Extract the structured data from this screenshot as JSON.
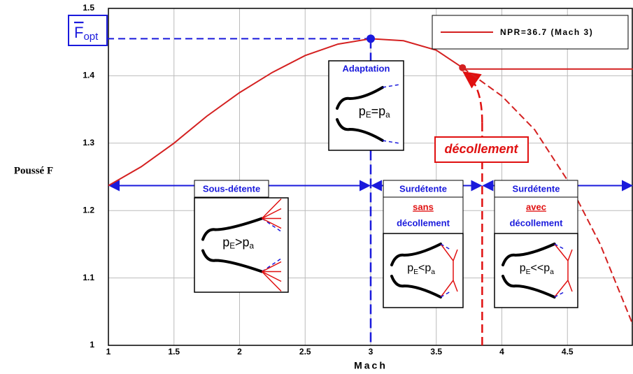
{
  "chart_data": {
    "type": "line",
    "xlabel": "Mach",
    "ylabel": "Poussé F",
    "xlim": [
      1,
      5
    ],
    "ylim": [
      1,
      1.5
    ],
    "xticks": [
      1,
      1.5,
      2,
      2.5,
      3,
      3.5,
      4,
      4.5
    ],
    "yticks": [
      1,
      1.1,
      1.2,
      1.3,
      1.4,
      1.5
    ],
    "grid": true,
    "legend": "upper right",
    "series": [
      {
        "name": "NPR=36.7 (Mach 3)",
        "color": "#d42020",
        "x": [
          1,
          1.25,
          1.5,
          1.75,
          2,
          2.25,
          2.5,
          2.75,
          3,
          3.25,
          3.5,
          3.7
        ],
        "values": [
          1.237,
          1.265,
          1.3,
          1.34,
          1.375,
          1.405,
          1.43,
          1.447,
          1.455,
          1.452,
          1.438,
          1.412
        ]
      },
      {
        "color": "#d42020",
        "dashed": true,
        "x": [
          3.7,
          4,
          4.25,
          4.5,
          4.75,
          5
        ],
        "values": [
          1.412,
          1.37,
          1.32,
          1.245,
          1.15,
          1.03
        ]
      },
      {
        "color": "#d42020",
        "x": [
          3.7,
          5
        ],
        "values": [
          1.41,
          1.41
        ]
      }
    ],
    "optimum": {
      "label": "F",
      "sub": "opt",
      "x": 3,
      "value": 1.455,
      "color": "#1a1adc"
    },
    "separation": {
      "x": 3.85,
      "label": "décollement",
      "color": "#e01010"
    },
    "regime_line": 1.237,
    "regimes": [
      {
        "label": "Sous-détente",
        "from": 1,
        "to": 3,
        "formula": [
          "p",
          "E",
          ">p",
          "a"
        ]
      },
      {
        "label": "Adaptation",
        "formula": [
          "p",
          "E",
          "=p",
          "a"
        ]
      },
      {
        "label": "Surdétente",
        "from": 3,
        "to": 3.85,
        "note": [
          "sans",
          "décollement"
        ],
        "formula": [
          "p",
          "E",
          "<p",
          "a"
        ]
      },
      {
        "label": "Surdétente",
        "from": 3.85,
        "to": 5,
        "note": [
          "avec",
          "décollement"
        ],
        "formula": [
          "p",
          "E",
          "<<p",
          "a"
        ]
      }
    ]
  }
}
